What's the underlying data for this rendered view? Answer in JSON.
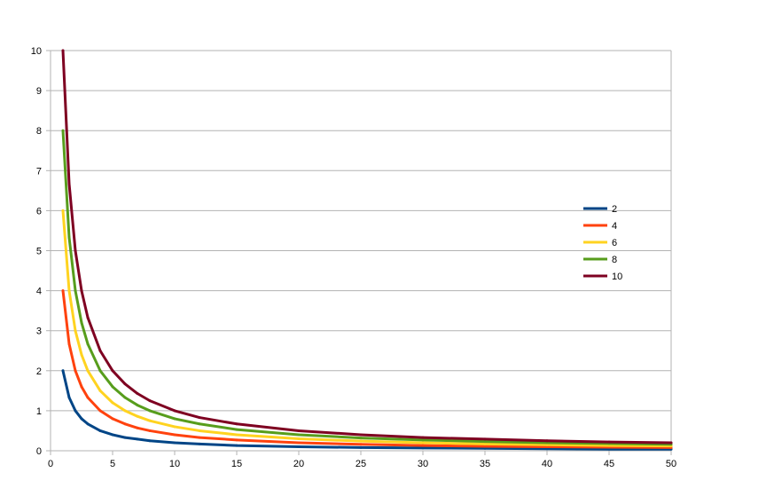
{
  "chart_data": {
    "type": "line",
    "title": "",
    "xlabel": "",
    "ylabel": "",
    "xlim": [
      0,
      50
    ],
    "ylim": [
      0,
      10
    ],
    "x_ticks": [
      0,
      5,
      10,
      15,
      20,
      25,
      30,
      35,
      40,
      45,
      50
    ],
    "y_ticks": [
      0,
      1,
      2,
      3,
      4,
      5,
      6,
      7,
      8,
      9,
      10
    ],
    "grid": "horizontal",
    "legend_position": "right",
    "x": [
      1,
      1.5,
      2,
      2.5,
      3,
      4,
      5,
      6,
      7,
      8,
      10,
      12,
      15,
      20,
      25,
      30,
      35,
      40,
      45,
      50
    ],
    "series": [
      {
        "name": "2",
        "color": "#004586",
        "values": [
          2.0,
          1.33,
          1.0,
          0.8,
          0.67,
          0.5,
          0.4,
          0.33,
          0.29,
          0.25,
          0.2,
          0.17,
          0.13,
          0.1,
          0.08,
          0.07,
          0.06,
          0.05,
          0.04,
          0.04
        ]
      },
      {
        "name": "4",
        "color": "#ff420e",
        "values": [
          4.0,
          2.67,
          2.0,
          1.6,
          1.33,
          1.0,
          0.8,
          0.67,
          0.57,
          0.5,
          0.4,
          0.33,
          0.27,
          0.2,
          0.16,
          0.13,
          0.11,
          0.1,
          0.09,
          0.08
        ]
      },
      {
        "name": "6",
        "color": "#ffd320",
        "values": [
          6.0,
          4.0,
          3.0,
          2.4,
          2.0,
          1.5,
          1.2,
          1.0,
          0.86,
          0.75,
          0.6,
          0.5,
          0.4,
          0.3,
          0.24,
          0.2,
          0.17,
          0.15,
          0.13,
          0.12
        ]
      },
      {
        "name": "8",
        "color": "#579d1c",
        "values": [
          8.0,
          5.33,
          4.0,
          3.2,
          2.67,
          2.0,
          1.6,
          1.33,
          1.14,
          1.0,
          0.8,
          0.67,
          0.53,
          0.4,
          0.32,
          0.27,
          0.23,
          0.2,
          0.18,
          0.16
        ]
      },
      {
        "name": "10",
        "color": "#7e0021",
        "values": [
          10.0,
          6.67,
          5.0,
          4.0,
          3.33,
          2.5,
          2.0,
          1.67,
          1.43,
          1.25,
          1.0,
          0.83,
          0.67,
          0.5,
          0.4,
          0.33,
          0.29,
          0.25,
          0.22,
          0.2
        ]
      }
    ]
  }
}
